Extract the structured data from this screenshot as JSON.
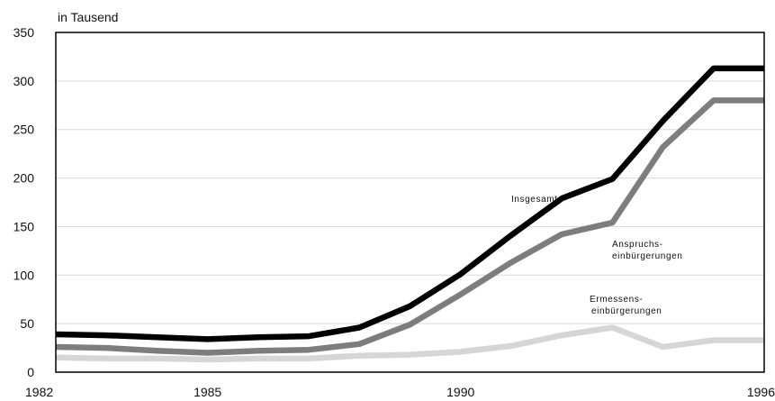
{
  "chart_data": {
    "type": "line",
    "unit_label": "in  Tausend",
    "ylim": [
      0,
      350
    ],
    "y_ticks": [
      0,
      50,
      100,
      150,
      200,
      250,
      300,
      350
    ],
    "xlim": [
      1982,
      1996
    ],
    "x_ticks": [
      1982,
      1985,
      1990,
      1996
    ],
    "grid": true,
    "x": [
      1982,
      1983,
      1984,
      1985,
      1986,
      1987,
      1988,
      1989,
      1990,
      1991,
      1992,
      1993,
      1994,
      1995,
      1996
    ],
    "series": [
      {
        "name": "Insgesamt",
        "color": "#000000",
        "values": [
          39,
          38,
          36,
          34,
          36,
          37,
          46,
          68,
          101,
          141,
          179,
          199,
          259,
          313,
          313
        ]
      },
      {
        "name": "Anspruchs- einbürgerungen",
        "label_lines": [
          "Anspruchs-",
          "einbürgerungen"
        ],
        "color": "#7d7d7d",
        "values": [
          26,
          25,
          22,
          20,
          22,
          23,
          29,
          49,
          80,
          113,
          142,
          154,
          232,
          280,
          280
        ]
      },
      {
        "name": "Ermessens- einbürgerungen",
        "label_lines": [
          "Ermessens-",
          "einbürgerungen"
        ],
        "color": "#d6d6d6",
        "values": [
          15,
          14,
          14,
          13,
          14,
          14,
          17,
          18,
          21,
          27,
          38,
          46,
          26,
          33,
          33
        ]
      }
    ]
  }
}
